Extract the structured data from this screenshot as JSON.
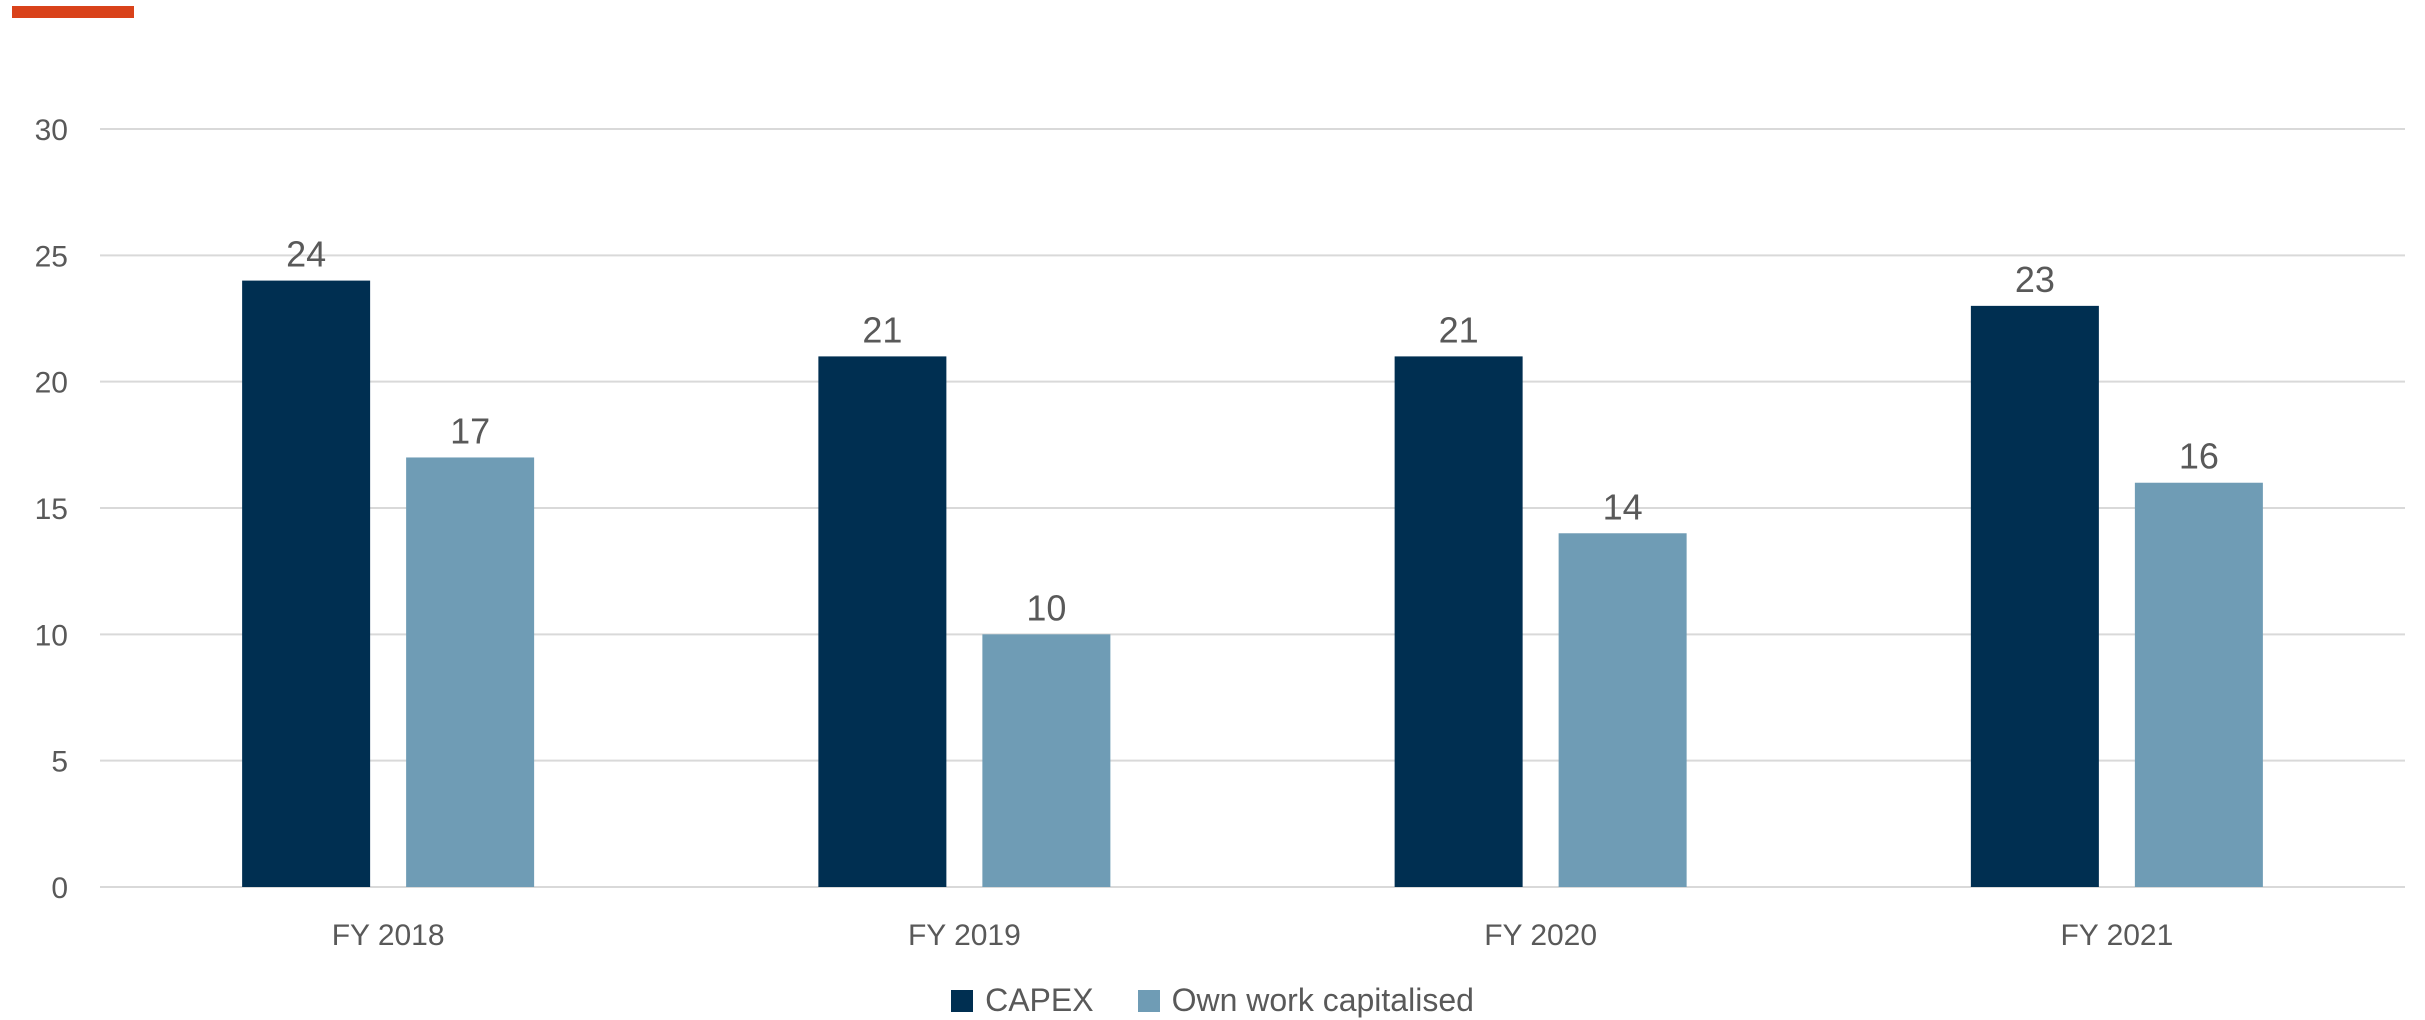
{
  "colors": {
    "accent": "#D9421A",
    "capex": "#002F51",
    "own_work": "#6F9CB5",
    "gridline": "#D9D9D9",
    "text": "#595959"
  },
  "chart_data": {
    "type": "bar",
    "categories": [
      "FY 2018",
      "FY 2019",
      "FY 2020",
      "FY 2021"
    ],
    "series": [
      {
        "name": "CAPEX",
        "values": [
          24,
          21,
          21,
          23
        ]
      },
      {
        "name": "Own work capitalised",
        "values": [
          17,
          10,
          14,
          16
        ]
      }
    ],
    "yticks": [
      0,
      5,
      10,
      15,
      20,
      25,
      30
    ],
    "ylim": [
      0,
      30
    ],
    "grid": true,
    "legend": "bottom",
    "data_labels": true
  }
}
